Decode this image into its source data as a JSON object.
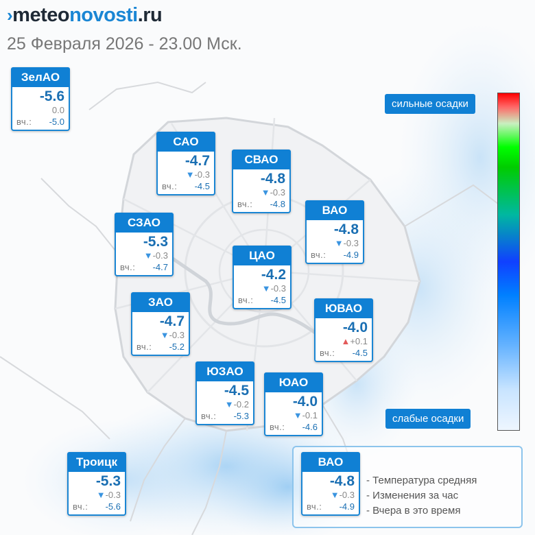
{
  "site": {
    "mark": "›",
    "name_part1": "meteo",
    "name_part2": "novosti",
    "name_part3": ".ru"
  },
  "subtitle": "25 Февраля 2026 - 23.00 Мск.",
  "yesterday_label": "вч.:",
  "colors": {
    "accent": "#1080d4",
    "temp": "#1a6fb3",
    "down_arrow": "#3a94e0",
    "up_arrow": "#e35b5b"
  },
  "districts": [
    {
      "name": "ЗелАО",
      "temp": "-5.6",
      "change": "0.0",
      "dir": "none",
      "yesterday": "-5.0"
    },
    {
      "name": "САО",
      "temp": "-4.7",
      "change": "-0.3",
      "dir": "down",
      "yesterday": "-4.5"
    },
    {
      "name": "СВАО",
      "temp": "-4.8",
      "change": "-0.3",
      "dir": "down",
      "yesterday": "-4.8"
    },
    {
      "name": "СЗАО",
      "temp": "-5.3",
      "change": "-0.3",
      "dir": "down",
      "yesterday": "-4.7"
    },
    {
      "name": "ВАО",
      "temp": "-4.8",
      "change": "-0.3",
      "dir": "down",
      "yesterday": "-4.9"
    },
    {
      "name": "ЦАО",
      "temp": "-4.2",
      "change": "-0.3",
      "dir": "down",
      "yesterday": "-4.5"
    },
    {
      "name": "ЗАО",
      "temp": "-4.7",
      "change": "-0.3",
      "dir": "down",
      "yesterday": "-5.2"
    },
    {
      "name": "ЮВАО",
      "temp": "-4.0",
      "change": "+0.1",
      "dir": "up",
      "yesterday": "-4.5"
    },
    {
      "name": "ЮЗАО",
      "temp": "-4.5",
      "change": "-0.2",
      "dir": "down",
      "yesterday": "-5.3"
    },
    {
      "name": "ЮАО",
      "temp": "-4.0",
      "change": "-0.1",
      "dir": "down",
      "yesterday": "-4.6"
    },
    {
      "name": "Троицк",
      "temp": "-5.3",
      "change": "-0.3",
      "dir": "down",
      "yesterday": "-5.6"
    }
  ],
  "scale": {
    "top_label": "сильные осадки",
    "bottom_label": "слабые осадки"
  },
  "legend": {
    "sample": {
      "name": "ВАО",
      "temp": "-4.8",
      "change": "-0.3",
      "dir": "down",
      "yesterday": "-4.9"
    },
    "lines": [
      "- Температура средняя",
      "- Изменения за час",
      "- Вчера в это время"
    ]
  }
}
